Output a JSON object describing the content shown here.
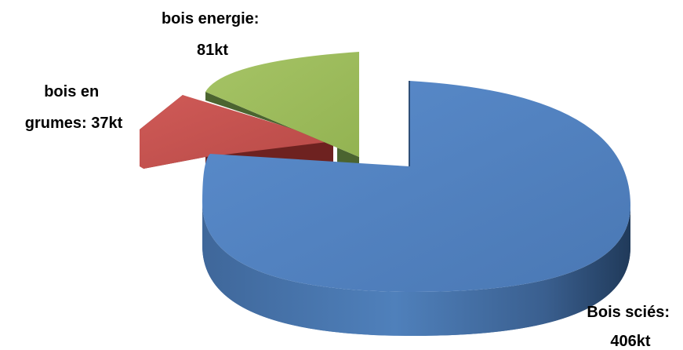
{
  "chart_data": {
    "type": "pie",
    "title": "",
    "style": "3d-exploded",
    "slices": [
      {
        "label_lines": [
          "Bois sciés:",
          "406kt"
        ],
        "value": 406,
        "unit": "kt",
        "color": "#4f81bd"
      },
      {
        "label_lines": [
          "bois en",
          "grumes:  37kt"
        ],
        "value": 37,
        "unit": "kt",
        "color": "#c0504d"
      },
      {
        "label_lines": [
          "bois energie:",
          "81kt"
        ],
        "value": 81,
        "unit": "kt",
        "color": "#9bbb59"
      }
    ],
    "legend": "none"
  }
}
